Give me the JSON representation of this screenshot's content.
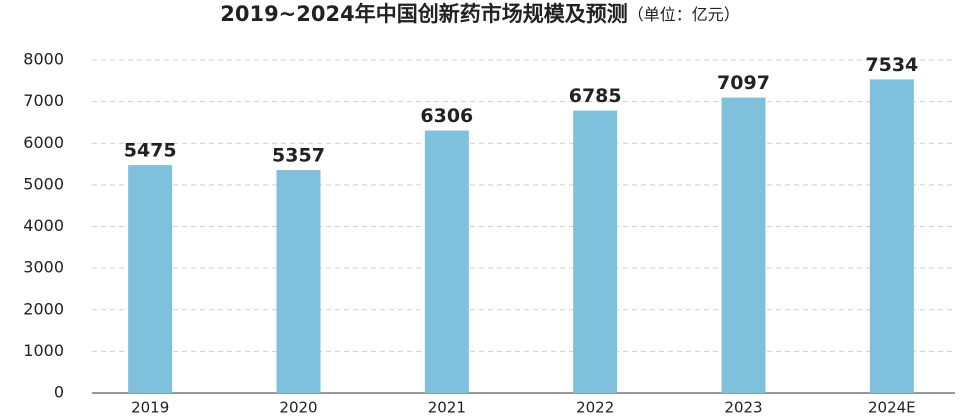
{
  "chart_data": {
    "type": "bar",
    "title": "2019~2024年中国创新药市场规模及预测",
    "subtitle": "（单位：亿元）",
    "categories": [
      "2019",
      "2020",
      "2021",
      "2022",
      "2023",
      "2024E"
    ],
    "values": [
      5475,
      5357,
      6306,
      6785,
      7097,
      7534
    ],
    "color": "#7fc1dc",
    "ylim": [
      0,
      8000
    ],
    "yticks": [
      0,
      1000,
      2000,
      3000,
      4000,
      5000,
      6000,
      7000,
      8000
    ],
    "grid": true
  }
}
